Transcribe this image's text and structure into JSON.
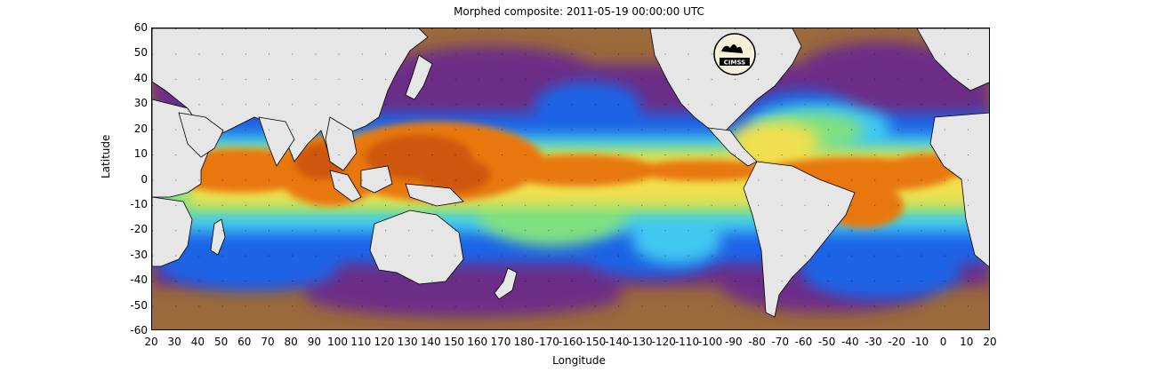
{
  "title": "Morphed composite: 2011-05-19 00:00:00 UTC",
  "xlabel": "Longitude",
  "ylabel": "Latitude",
  "lat_ticks": [
    "60",
    "50",
    "40",
    "30",
    "20",
    "10",
    "0",
    "-10",
    "-20",
    "-30",
    "-40",
    "-50",
    "-60"
  ],
  "lon_ticks": [
    "20",
    "30",
    "40",
    "50",
    "60",
    "70",
    "80",
    "90",
    "100",
    "110",
    "120",
    "130",
    "140",
    "150",
    "160",
    "170",
    "180",
    "-170",
    "-160",
    "-150",
    "-140",
    "-130",
    "-120",
    "-110",
    "-100",
    "-90",
    "-80",
    "-70",
    "-60",
    "-50",
    "-40",
    "-30",
    "-20",
    "-10",
    "0",
    "10",
    "20"
  ],
  "logo_text": "CIMSS",
  "colors": {
    "land": "#e6e6e6",
    "dry_brown": "#9a6a3c",
    "purple": "#6a2a8c",
    "blue": "#1e64e6",
    "cyan": "#40c8f0",
    "green": "#80e080",
    "yellow": "#f0e050",
    "orange": "#e8780a",
    "dark_orange": "#c85008"
  }
}
